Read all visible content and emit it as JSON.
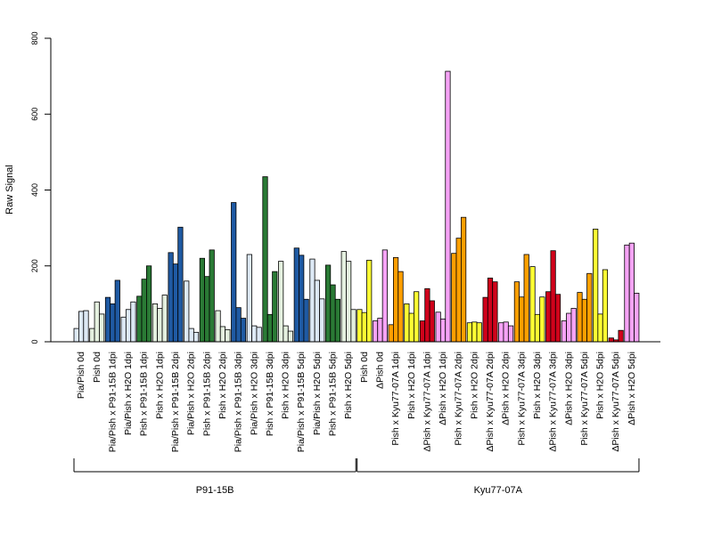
{
  "chart_data": {
    "type": "bar",
    "ylabel": "Raw Signal",
    "ylim": [
      0,
      800
    ],
    "yticks": [
      0,
      200,
      400,
      600,
      800
    ],
    "grid": false,
    "categories": [
      "Pia/Pish 0d",
      "Pish 0d",
      "Pia/Pish x P91-15B 1dpi",
      "Pia/Pish x H2O 1dpi",
      "Pish x P91-15B 1dpi",
      "Pish x H2O 1dpi",
      "Pia/Pish x P91-15B 2dpi",
      "Pia/Pish x H2O 2dpi",
      "Pish x P91-15B 2dpi",
      "Pish x H2O 2dpi",
      "Pia/Pish x P91-15B 3dpi",
      "Pia/Pish x H2O 3dpi",
      "Pish x P91-15B 3dpi",
      "Pish x H2O 3dpi",
      "Pia/Pish x P91-15B 5dpi",
      "Pia/Pish x H2O 5dpi",
      "Pish x P91-15B 5dpi",
      "Pish x H2O 5dpi",
      "Pish 0d",
      "ΔPish 0d",
      "Pish x Kyu77-07A 1dpi",
      "Pish x H2O 1dpi",
      "ΔPish x Kyu77-07A 1dpi",
      "ΔPish x H2O 1dpi",
      "Pish x Kyu77-07A 2dpi",
      "Pish x H2O 2dpi",
      "ΔPish x Kyu77-07A 2dpi",
      "ΔPish x H2O 2dpi",
      "Pish x Kyu77-07A 3dpi",
      "Pish x H2O 3dpi",
      "ΔPish x Kyu77-07A 3dpi",
      "ΔPish x H2O 3dpi",
      "Pish x Kyu77-07A 5dpi",
      "Pish x H2O 5dpi",
      "ΔPish x Kyu77-07A 5dpi",
      "ΔPish x H2O 5dpi"
    ],
    "colors": [
      "#dde9f5",
      "#e4f0df",
      "#1f5aa3",
      "#dde9f5",
      "#2a7a35",
      "#e4f0df",
      "#1f5aa3",
      "#dde9f5",
      "#2a7a35",
      "#e4f0df",
      "#1f5aa3",
      "#dde9f5",
      "#2a7a35",
      "#e4f0df",
      "#1f5aa3",
      "#dde9f5",
      "#2a7a35",
      "#e4f0df",
      "#ffff33",
      "#f6a3f6",
      "#ff9f00",
      "#ffff33",
      "#d0021b",
      "#f6a3f6",
      "#ff9f00",
      "#ffff33",
      "#d0021b",
      "#f6a3f6",
      "#ff9f00",
      "#ffff33",
      "#d0021b",
      "#f6a3f6",
      "#ff9f00",
      "#ffff33",
      "#d0021b",
      "#f6a3f6"
    ],
    "values": [
      [
        35,
        80,
        82
      ],
      [
        35,
        105,
        73
      ],
      [
        117,
        100,
        162
      ],
      [
        65,
        85,
        105
      ],
      [
        120,
        165,
        200
      ],
      [
        100,
        88,
        123
      ],
      [
        235,
        205,
        302
      ],
      [
        160,
        35,
        25
      ],
      [
        220,
        172,
        242
      ],
      [
        82,
        40,
        32
      ],
      [
        367,
        90,
        62
      ],
      [
        230,
        42,
        38
      ],
      [
        435,
        72,
        185
      ],
      [
        212,
        42,
        28
      ],
      [
        247,
        228,
        112
      ],
      [
        218,
        162,
        113
      ],
      [
        202,
        150,
        112
      ],
      [
        238,
        212,
        85
      ],
      [
        85,
        77,
        215
      ],
      [
        55,
        62,
        242
      ],
      [
        45,
        222,
        185
      ],
      [
        100,
        75,
        132
      ],
      [
        55,
        140,
        108
      ],
      [
        78,
        60,
        713
      ],
      [
        233,
        273,
        328
      ],
      [
        50,
        52,
        50
      ],
      [
        117,
        168,
        158
      ],
      [
        50,
        52,
        42
      ],
      [
        158,
        118,
        230
      ],
      [
        198,
        72,
        118
      ],
      [
        132,
        240,
        125
      ],
      [
        55,
        75,
        88
      ],
      [
        130,
        112,
        180
      ],
      [
        297,
        73,
        190
      ],
      [
        10,
        5,
        30
      ],
      [
        255,
        260,
        128
      ]
    ],
    "groups": [
      {
        "label": "P91-15B",
        "start": 0,
        "end": 17
      },
      {
        "label": "Kyu77-07A",
        "start": 18,
        "end": 35
      }
    ]
  }
}
